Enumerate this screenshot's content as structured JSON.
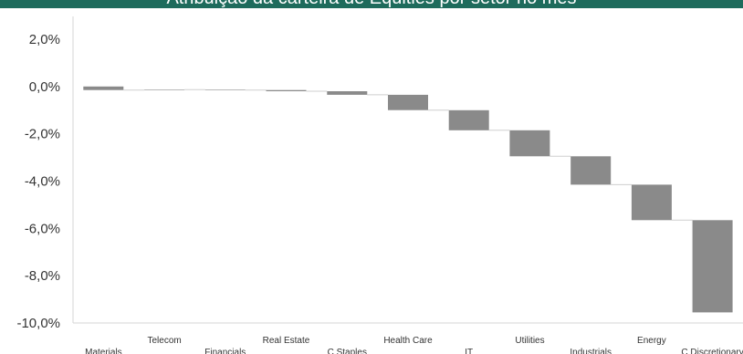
{
  "title": "Atribuição da carteira de Equities por setor no mês",
  "colors": {
    "header_bg": "#1e6b5c",
    "bar": "#8a8a8a",
    "connector": "#cfcfcf",
    "axis": "#d4d4d4"
  },
  "chart_data": {
    "type": "bar",
    "subtype": "waterfall",
    "title": "Atribuição da carteira de Equities por setor no mês",
    "categories": [
      "Materials",
      "Telecom",
      "Financials",
      "Real Estate",
      "C Staples",
      "Health Care",
      "IT",
      "Utilities",
      "Industrials",
      "Energy",
      "C Discretionary"
    ],
    "values": [
      -0.15,
      0.02,
      -0.02,
      -0.05,
      -0.15,
      -0.65,
      -0.85,
      -1.1,
      -1.2,
      -1.5,
      -3.9
    ],
    "cumulative_end": [
      -0.15,
      -0.13,
      -0.15,
      -0.2,
      -0.35,
      -1.0,
      -1.85,
      -2.95,
      -4.15,
      -5.65,
      -9.55
    ],
    "ylim": [
      -10,
      2
    ],
    "yticks": [
      2,
      0,
      -2,
      -4,
      -6,
      -8,
      -10
    ],
    "ytick_labels": [
      "2,0%",
      "0,0%",
      "-2,0%",
      "-4,0%",
      "-6,0%",
      "-8,0%",
      "-10,0%"
    ],
    "xlabel": "",
    "ylabel": "",
    "grid": false,
    "legend": "none"
  }
}
